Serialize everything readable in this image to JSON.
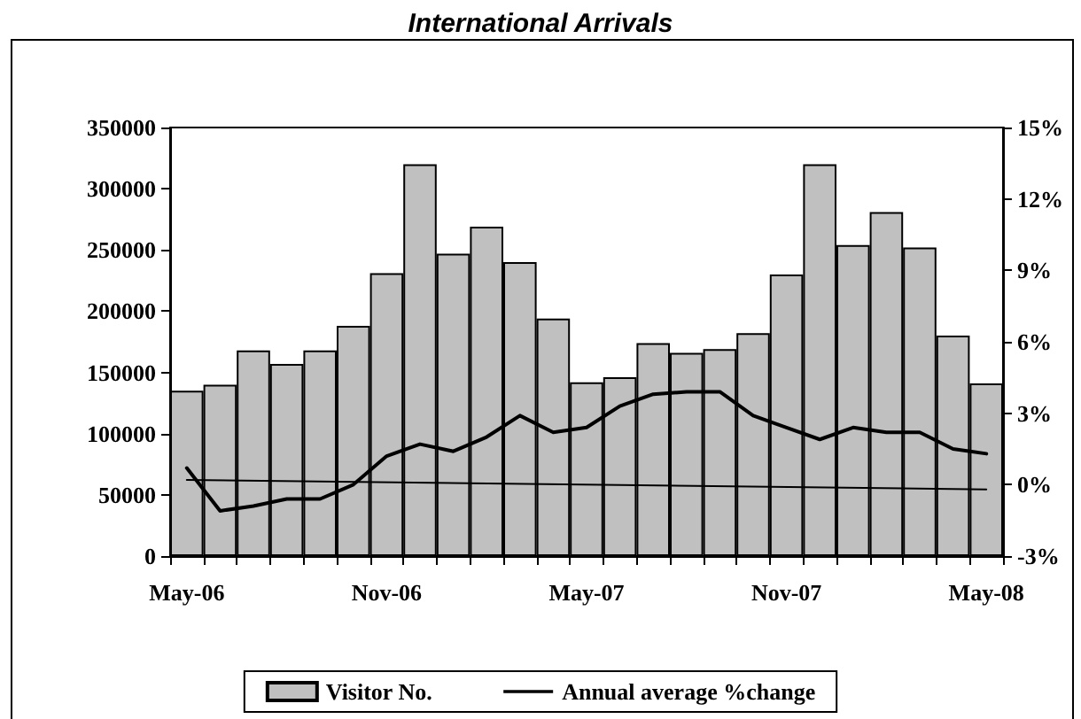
{
  "chart_data": {
    "type": "bar",
    "title": "International Arrivals",
    "categories": [
      "May-06",
      null,
      null,
      null,
      null,
      null,
      "Nov-06",
      null,
      null,
      null,
      null,
      null,
      "May-07",
      null,
      null,
      null,
      null,
      null,
      "Nov-07",
      null,
      null,
      null,
      null,
      null,
      "May-08"
    ],
    "series": [
      {
        "name": "Visitor No.",
        "color": "#c0c0c0",
        "values": [
          135000,
          140000,
          168000,
          157000,
          168000,
          188000,
          231000,
          320000,
          247000,
          269000,
          240000,
          194000,
          142000,
          146000,
          174000,
          166000,
          169000,
          182000,
          230000,
          320000,
          254000,
          281000,
          252000,
          180000,
          141000
        ]
      },
      {
        "name": "Annual average %change",
        "type": "line",
        "axis": "y2",
        "color": "#000000",
        "values": [
          0.7,
          -1.1,
          -0.9,
          -0.6,
          -0.6,
          0.0,
          1.2,
          1.7,
          1.4,
          2.0,
          2.9,
          2.2,
          2.4,
          3.3,
          3.8,
          3.9,
          3.9,
          2.9,
          2.4,
          1.9,
          2.4,
          2.2,
          2.2,
          1.5,
          1.3
        ]
      },
      {
        "type": "line",
        "axis": "y2",
        "color": "#000000",
        "x": [
          "May-06",
          "May-08"
        ],
        "values": [
          0.2,
          -0.2
        ]
      }
    ],
    "ylim": [
      0,
      350000
    ],
    "yticks": [
      0,
      50000,
      100000,
      150000,
      200000,
      250000,
      300000,
      350000
    ],
    "y2lim": [
      -3,
      15
    ],
    "y2ticks": [
      {
        "value": -3,
        "label": "-3%"
      },
      {
        "value": 0,
        "label": "0%"
      },
      {
        "value": 3,
        "label": "3%"
      },
      {
        "value": 6,
        "label": "6%"
      },
      {
        "value": 9,
        "label": "9%"
      },
      {
        "value": 12,
        "label": "12%"
      },
      {
        "value": 15,
        "label": "15%"
      }
    ],
    "grid": false,
    "legend": "bottom",
    "marker": "none"
  }
}
